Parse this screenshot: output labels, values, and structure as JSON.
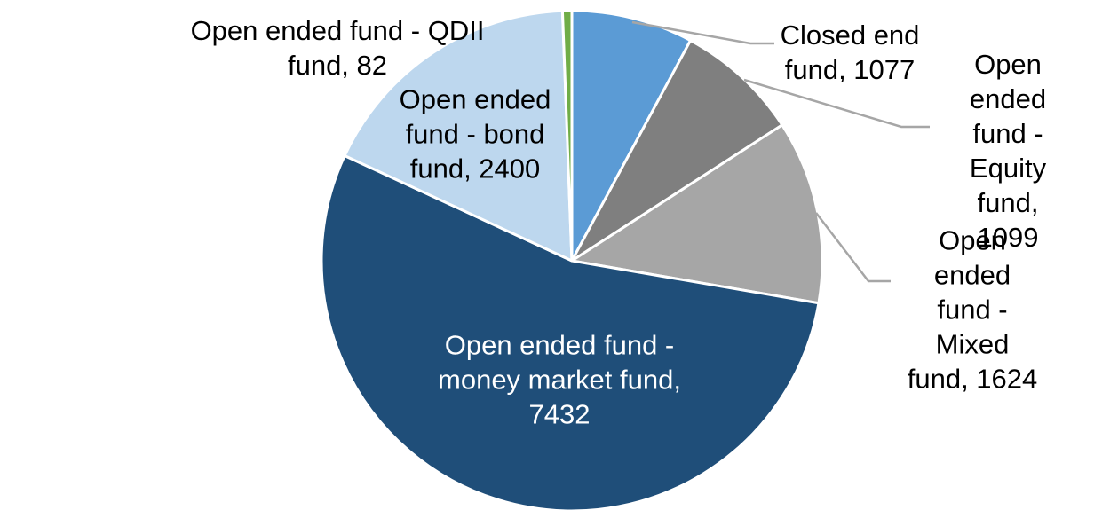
{
  "chart_data": {
    "type": "pie",
    "title": "",
    "legend_position": "none",
    "data_labels": "category-and-value",
    "start_angle_deg": 0,
    "direction": "clockwise",
    "total": 13714,
    "slices": [
      {
        "id": "closed-end-fund",
        "label": "Closed end fund",
        "value": 1077,
        "color": "#5B9BD5"
      },
      {
        "id": "equity-fund",
        "label": "Open ended fund - Equity fund",
        "value": 1099,
        "color": "#7F7F7F"
      },
      {
        "id": "mixed-fund",
        "label": "Open ended fund - Mixed fund",
        "value": 1624,
        "color": "#A6A6A6"
      },
      {
        "id": "money-market-fund",
        "label": "Open ended fund - money market fund",
        "value": 7432,
        "color": "#1F4E79"
      },
      {
        "id": "bond-fund",
        "label": "Open ended fund - bond fund",
        "value": 2400,
        "color": "#BDD7EE"
      },
      {
        "id": "qdii-fund",
        "label": "Open ended fund - QDII fund",
        "value": 82,
        "color": "#70AD47"
      }
    ]
  },
  "labels": {
    "qdii": {
      "text": "Open ended fund - QDII\nfund, 82"
    },
    "bond": {
      "text": "Open ended\nfund - bond\nfund, 2400"
    },
    "closed": {
      "text": "Closed end\nfund, 1077"
    },
    "equity": {
      "text": "Open ended\nfund - Equity\nfund, 1099"
    },
    "mixed": {
      "text": "Open ended\nfund - Mixed\nfund, 1624"
    },
    "money": {
      "text": "Open ended fund -\nmoney market fund,\n7432"
    }
  },
  "colors": {
    "background": "#FFFFFF",
    "slice_border": "#FFFFFF",
    "leader_line": "#A6A6A6",
    "label_text": "#000000",
    "inside_label_text": "#FFFFFF"
  }
}
